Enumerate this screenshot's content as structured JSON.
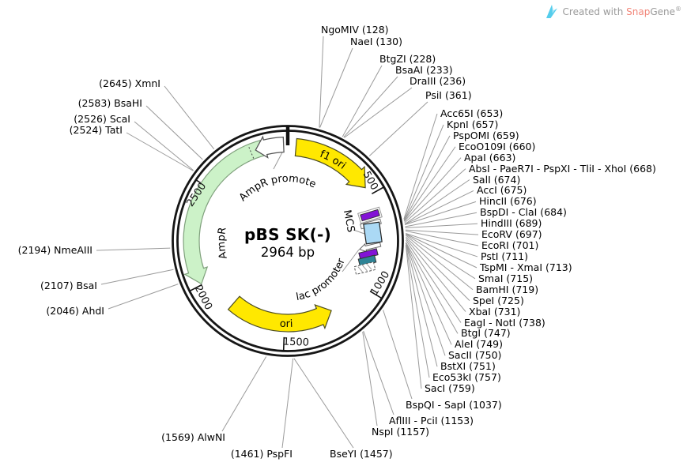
{
  "watermark": {
    "prefix": "Created with",
    "brand_primary": "Snap",
    "brand_secondary": "Gene",
    "registered": "®"
  },
  "plasmid": {
    "title": "pBS SK(-)",
    "size": "2964 bp",
    "length_bp": 2964,
    "ticks": [
      {
        "label": "500",
        "bp": 500
      },
      {
        "label": "1000",
        "bp": 1000
      },
      {
        "label": "1500",
        "bp": 1500
      },
      {
        "label": "2000",
        "bp": 2000
      },
      {
        "label": "2500",
        "bp": 2500
      }
    ],
    "features": [
      {
        "label": "f1 ori",
        "kind": "arrow",
        "direction": "clockwise",
        "color": "#ffe800"
      },
      {
        "label": "AmpR promoter",
        "kind": "arrow",
        "direction": "counterclockwise",
        "color": "#ffffff"
      },
      {
        "label": "AmpR",
        "kind": "arrow",
        "direction": "counterclockwise",
        "color": "#ccf2c8"
      },
      {
        "label": "ori",
        "kind": "arrow",
        "direction": "counterclockwise",
        "color": "#ffe800"
      },
      {
        "label": "MCS",
        "kind": "region",
        "color": "#abd9f5"
      },
      {
        "label": "lac promoter",
        "kind": "promoter",
        "color": "#ffffff"
      }
    ],
    "sites": {
      "top": [
        {
          "label": "NgoMIV (128)",
          "bp": 128
        },
        {
          "label": "NaeI (130)",
          "bp": 130
        },
        {
          "label": "BtgZI (228)",
          "bp": 228
        },
        {
          "label": "BsaAI (233)",
          "bp": 233
        },
        {
          "label": "DraIII (236)",
          "bp": 236
        },
        {
          "label": "PsiI (361)",
          "bp": 361
        }
      ],
      "right": [
        {
          "label": "Acc65I (653)",
          "bp": 653
        },
        {
          "label": "KpnI (657)",
          "bp": 657
        },
        {
          "label": "PspOMI (659)",
          "bp": 659
        },
        {
          "label": "EcoO109I (660)",
          "bp": 660
        },
        {
          "label": "ApaI (663)",
          "bp": 663
        },
        {
          "label": "AbsI - PaeR7I - PspXI - TliI - XhoI (668)",
          "bp": 668
        },
        {
          "label": "SalI (674)",
          "bp": 674
        },
        {
          "label": "AccI (675)",
          "bp": 675
        },
        {
          "label": "HincII (676)",
          "bp": 676
        },
        {
          "label": "BspDI - ClaI (684)",
          "bp": 684
        },
        {
          "label": "HindIII (689)",
          "bp": 689
        },
        {
          "label": "EcoRV (697)",
          "bp": 697
        },
        {
          "label": "EcoRI (701)",
          "bp": 701
        },
        {
          "label": "PstI (711)",
          "bp": 711
        },
        {
          "label": "TspMI - XmaI (713)",
          "bp": 713
        },
        {
          "label": "SmaI (715)",
          "bp": 715
        },
        {
          "label": "BamHI (719)",
          "bp": 719
        },
        {
          "label": "SpeI (725)",
          "bp": 725
        },
        {
          "label": "XbaI (731)",
          "bp": 731
        },
        {
          "label": "EagI - NotI (738)",
          "bp": 738
        },
        {
          "label": "BtgI (747)",
          "bp": 747
        },
        {
          "label": "AleI (749)",
          "bp": 749
        },
        {
          "label": "SacII (750)",
          "bp": 750
        },
        {
          "label": "BstXI (751)",
          "bp": 751
        },
        {
          "label": "Eco53kI (757)",
          "bp": 757
        },
        {
          "label": "SacI (759)",
          "bp": 759
        }
      ],
      "bottom_right": [
        {
          "label": "BspQI - SapI (1037)",
          "bp": 1037
        },
        {
          "label": "AflIII - PciI (1153)",
          "bp": 1153
        },
        {
          "label": "NspI (1157)",
          "bp": 1157
        },
        {
          "label": "BseYI (1457)",
          "bp": 1457
        }
      ],
      "bottom_left": [
        {
          "label": "(1461) PspFI",
          "bp": 1461
        },
        {
          "label": "(1569) AlwNI",
          "bp": 1569
        }
      ],
      "left": [
        {
          "label": "(2645) XmnI",
          "bp": 2645
        },
        {
          "label": "(2583) BsaHI",
          "bp": 2583
        },
        {
          "label": "(2526) ScaI",
          "bp": 2526
        },
        {
          "label": "(2524) TatI",
          "bp": 2524
        },
        {
          "label": "(2194) NmeAIII",
          "bp": 2194
        },
        {
          "label": "(2107) BsaI",
          "bp": 2107
        },
        {
          "label": "(2046) AhdI",
          "bp": 2046
        }
      ]
    }
  }
}
